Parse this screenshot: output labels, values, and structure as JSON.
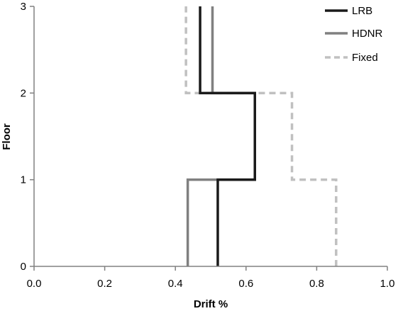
{
  "chart_data": {
    "type": "line",
    "title": "",
    "xlabel": "Drift %",
    "ylabel": "Floor",
    "xlim": [
      0.0,
      1.0
    ],
    "ylim": [
      0,
      3
    ],
    "x_ticks": [
      0.0,
      0.2,
      0.4,
      0.6,
      0.8,
      1.0
    ],
    "x_tick_labels": [
      "0.0",
      "0.2",
      "0.4",
      "0.6",
      "0.8",
      "1.0"
    ],
    "y_ticks": [
      0,
      1,
      2,
      3
    ],
    "y_tick_labels": [
      "0",
      "1",
      "2",
      "3"
    ],
    "grid": false,
    "legend_position": "top-right",
    "step_profile": true,
    "series": [
      {
        "name": "LRB",
        "color": "#1a1a1a",
        "style": "solid",
        "drift_by_story": [
          0.52,
          0.625,
          0.47
        ],
        "points": [
          {
            "x": 0.52,
            "y": 0
          },
          {
            "x": 0.52,
            "y": 1
          },
          {
            "x": 0.625,
            "y": 1
          },
          {
            "x": 0.625,
            "y": 2
          },
          {
            "x": 0.47,
            "y": 2
          },
          {
            "x": 0.47,
            "y": 3
          }
        ]
      },
      {
        "name": "HDNR",
        "color": "#808080",
        "style": "solid",
        "drift_by_story": [
          0.435,
          0.625,
          0.505
        ],
        "points": [
          {
            "x": 0.435,
            "y": 0
          },
          {
            "x": 0.435,
            "y": 1
          },
          {
            "x": 0.625,
            "y": 1
          },
          {
            "x": 0.625,
            "y": 2
          },
          {
            "x": 0.505,
            "y": 2
          },
          {
            "x": 0.505,
            "y": 3
          }
        ]
      },
      {
        "name": "Fixed",
        "color": "#c0c0c0",
        "style": "dashed",
        "drift_by_story": [
          0.855,
          0.73,
          0.43
        ],
        "points": [
          {
            "x": 0.855,
            "y": 0
          },
          {
            "x": 0.855,
            "y": 1
          },
          {
            "x": 0.73,
            "y": 1
          },
          {
            "x": 0.73,
            "y": 2
          },
          {
            "x": 0.43,
            "y": 2
          },
          {
            "x": 0.43,
            "y": 3
          }
        ]
      }
    ]
  }
}
